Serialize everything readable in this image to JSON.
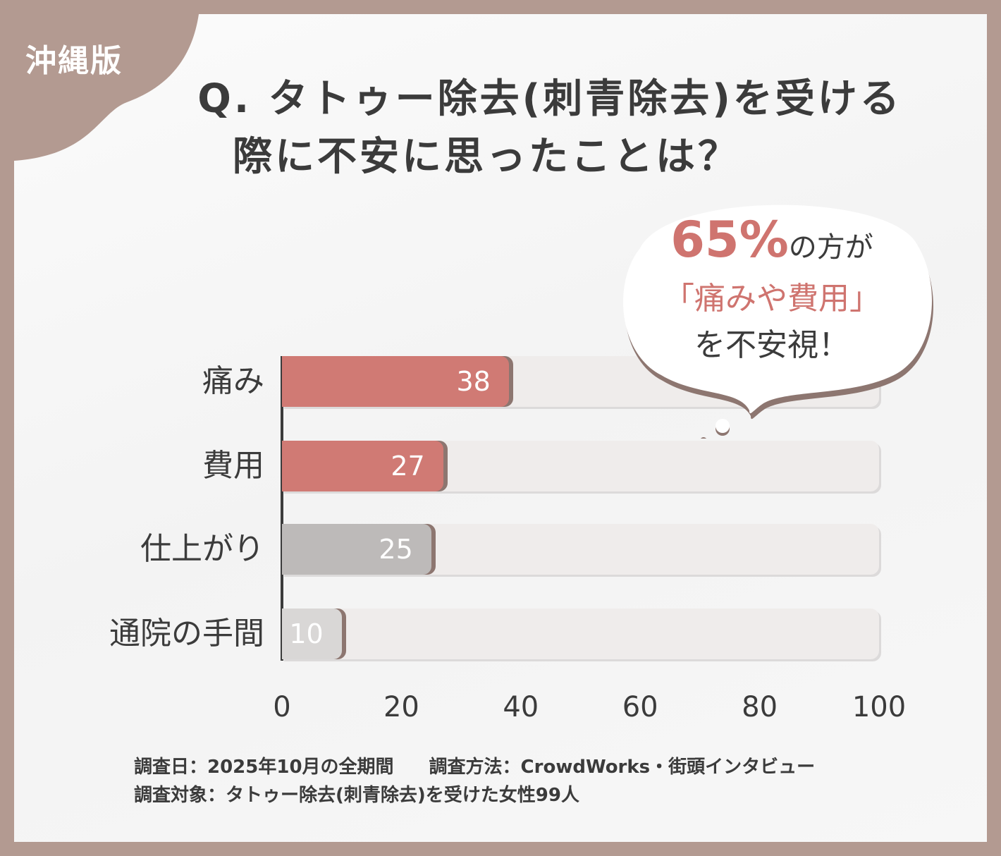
{
  "badge": "沖縄版",
  "title_lines": [
    "Q. タトゥー除去(刺青除去)を受ける",
    "際に不安に思ったことは？"
  ],
  "callout": {
    "percent": "65%",
    "line1_rest": "の方が",
    "line2": "「痛みや費用」",
    "line3": "を不安視！"
  },
  "colors": {
    "background": "#b39a91",
    "highlight": "#d07a74",
    "gray": "#bdbab9",
    "light_gray": "#d9d7d6",
    "track": "#efeceb"
  },
  "chart_data": {
    "type": "bar",
    "orientation": "horizontal",
    "categories": [
      "痛み",
      "費用",
      "仕上がり",
      "通院の手間"
    ],
    "values": [
      38,
      27,
      25,
      10
    ],
    "value_labels": [
      "38",
      "27",
      "25",
      "10"
    ],
    "bar_colors": [
      "#d07a74",
      "#d07a74",
      "#bdbab9",
      "#d9d7d6"
    ],
    "xlim": [
      0,
      100
    ],
    "xticks": [
      "0",
      "20",
      "40",
      "60",
      "80",
      "100"
    ],
    "grid": false
  },
  "notes": {
    "date": "調査日：2025年10月の全期間",
    "method": "調査方法：CrowdWorks・街頭インタビュー",
    "target": "調査対象：タトゥー除去(刺青除去)を受けた女性99人"
  }
}
